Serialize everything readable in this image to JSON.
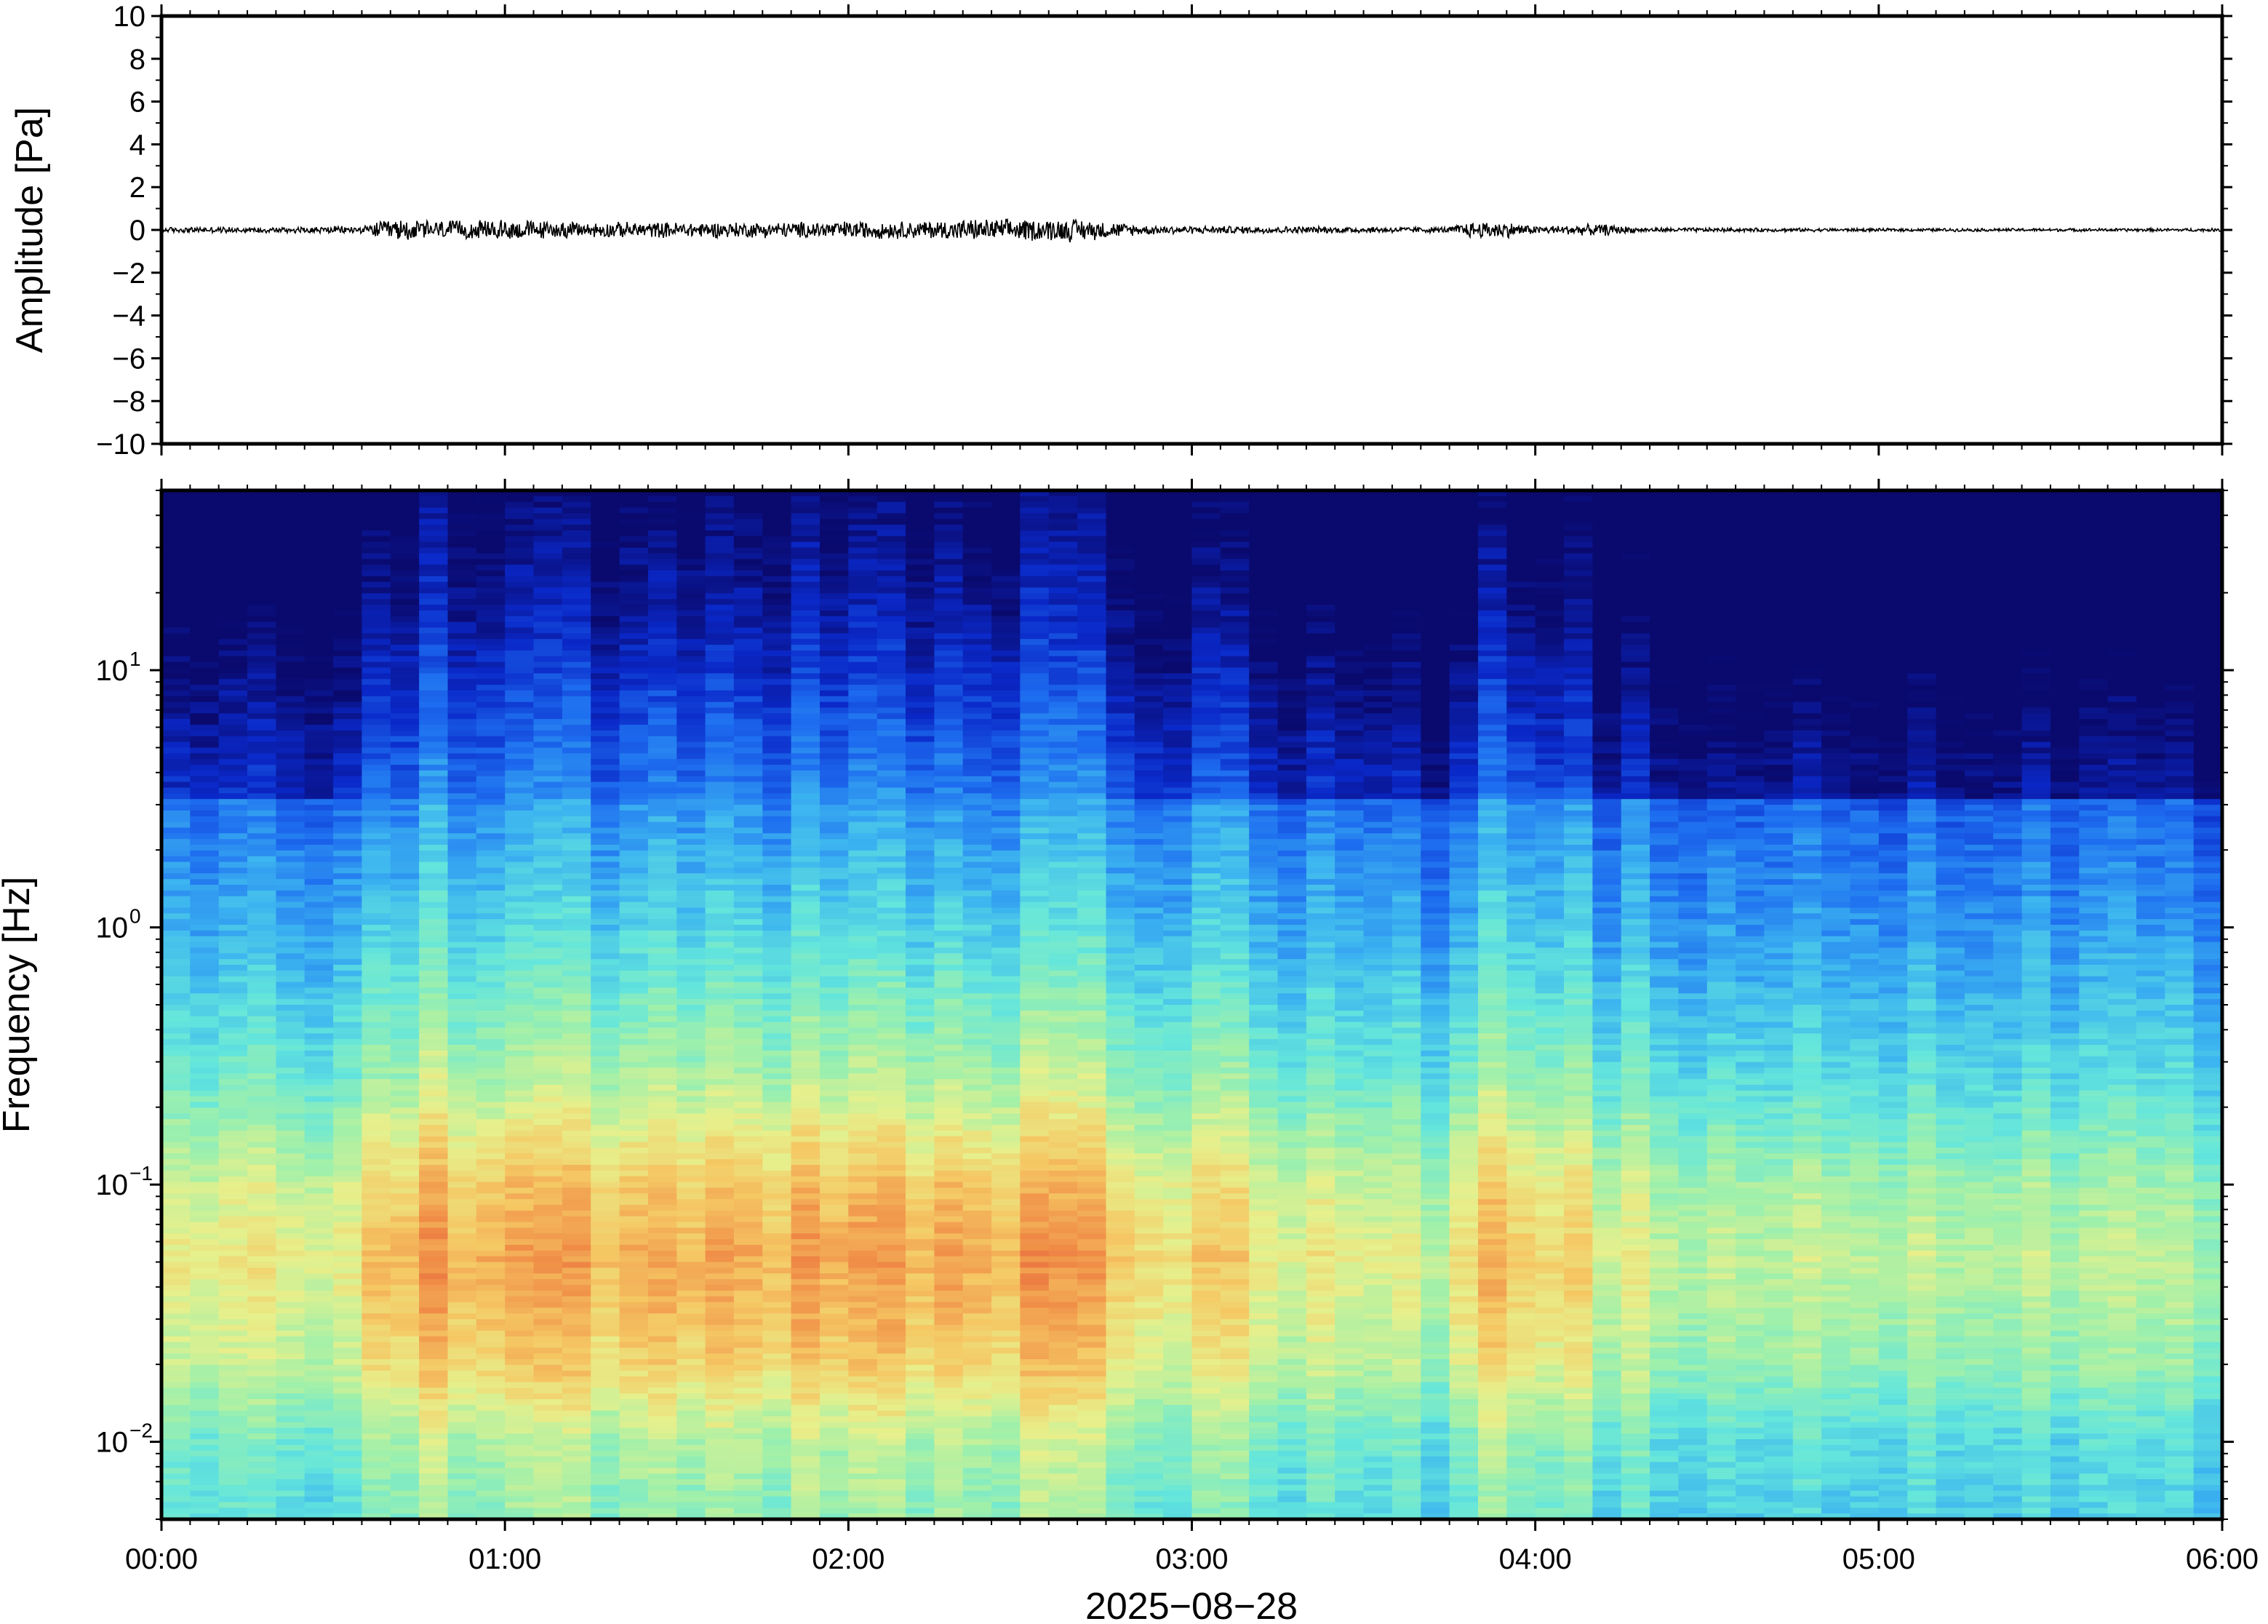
{
  "chart_data": [
    {
      "type": "line",
      "ylabel": "Amplitude [Pa]",
      "ylim": [
        -10,
        10
      ],
      "yticks": [
        "10",
        "8",
        "6",
        "4",
        "2",
        "0",
        "−2",
        "−4",
        "−6",
        "−8",
        "−10"
      ],
      "ytick_values": [
        10,
        8,
        6,
        4,
        2,
        0,
        -2,
        -4,
        -6,
        -8,
        -10
      ],
      "xlim_hours": [
        0,
        6
      ],
      "envelope": {
        "x_hours": [
          0.0,
          0.3,
          0.6,
          0.63,
          0.7,
          0.9,
          1.0,
          1.2,
          1.5,
          1.8,
          2.0,
          2.2,
          2.35,
          2.5,
          2.65,
          2.75,
          2.85,
          3.0,
          3.3,
          3.6,
          3.75,
          3.8,
          3.9,
          4.0,
          4.1,
          4.2,
          4.3,
          4.6,
          5.0,
          5.5,
          6.0
        ],
        "amplitude_pa": [
          0.15,
          0.15,
          0.2,
          0.45,
          0.55,
          0.45,
          0.55,
          0.4,
          0.4,
          0.4,
          0.45,
          0.45,
          0.55,
          0.55,
          0.6,
          0.45,
          0.25,
          0.2,
          0.18,
          0.15,
          0.15,
          0.4,
          0.45,
          0.2,
          0.25,
          0.3,
          0.12,
          0.1,
          0.08,
          0.08,
          0.08
        ]
      },
      "grid": false
    },
    {
      "type": "heatmap",
      "ylabel": "Frequency [Hz]",
      "yscale": "log",
      "ylim": [
        0.005,
        50
      ],
      "yticks": [
        {
          "base": "10",
          "exp": "1",
          "value": 10
        },
        {
          "base": "10",
          "exp": "0",
          "value": 1
        },
        {
          "base": "10",
          "exp": "−1",
          "value": 0.1
        },
        {
          "base": "10",
          "exp": "−2",
          "value": 0.01
        }
      ],
      "xlabel": "2025−08−28",
      "xticks": [
        "00:00",
        "01:00",
        "02:00",
        "03:00",
        "04:00",
        "05:00",
        "06:00"
      ],
      "xlim_hours": [
        0,
        6
      ],
      "colormap": [
        "#0a0a6e",
        "#0a28c8",
        "#1e6ef0",
        "#3cb4f0",
        "#64e6dc",
        "#a0f0aa",
        "#e6f08c",
        "#f5c864",
        "#f08c46",
        "#e0503c"
      ],
      "energy_profile": {
        "x_hours": [
          0.0,
          0.3,
          0.6,
          0.63,
          1.0,
          1.5,
          2.0,
          2.5,
          2.75,
          2.8,
          2.9,
          3.2,
          3.5,
          3.7,
          3.8,
          3.9,
          4.1,
          4.2,
          4.3,
          4.6,
          5.0,
          5.5,
          6.0
        ],
        "relative_level": [
          0.55,
          0.58,
          0.6,
          0.85,
          0.9,
          0.85,
          0.9,
          0.92,
          0.88,
          0.75,
          0.7,
          0.6,
          0.55,
          0.45,
          0.8,
          0.75,
          0.6,
          0.55,
          0.42,
          0.4,
          0.4,
          0.38,
          0.38
        ]
      },
      "grid": false
    }
  ]
}
